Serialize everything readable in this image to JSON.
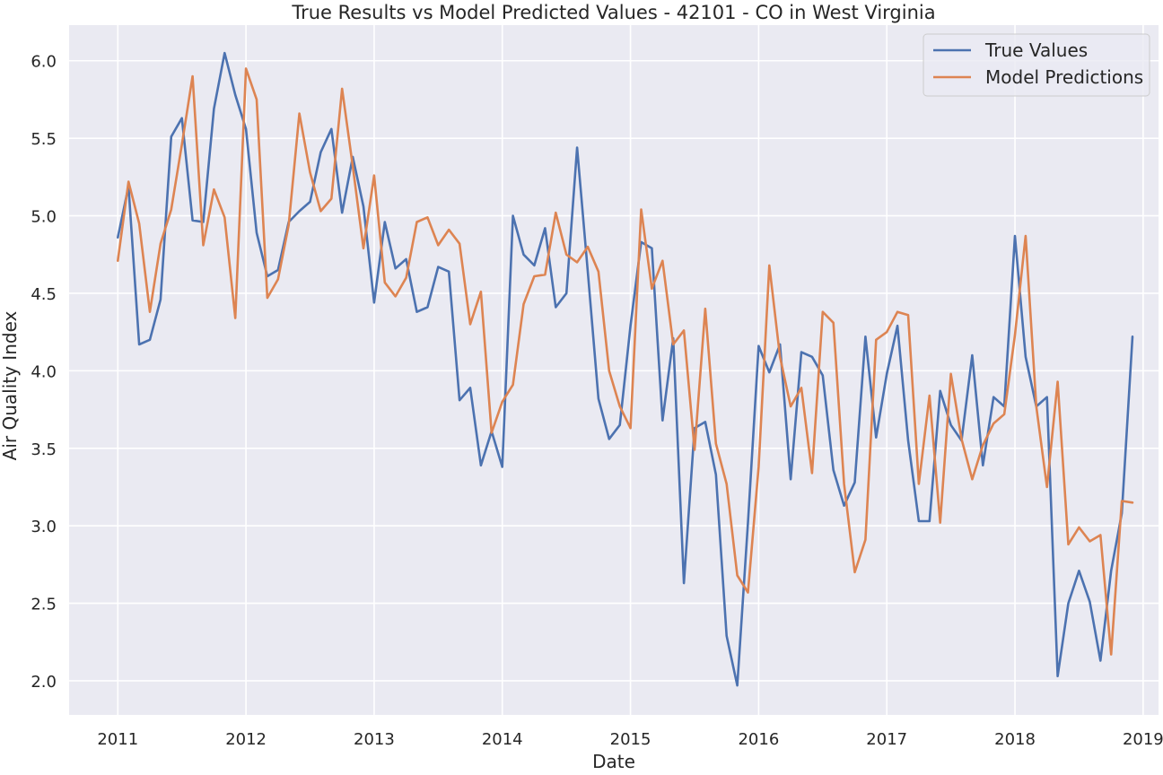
{
  "chart_data": {
    "type": "line",
    "title": "True Results vs Model Predicted Values - 42101 - CO in West Virginia",
    "xlabel": "Date",
    "ylabel": "Air Quality Index",
    "xlim": [
      2010.62,
      2019.12
    ],
    "ylim": [
      1.78,
      6.23
    ],
    "x_ticks": [
      2011,
      2012,
      2013,
      2014,
      2015,
      2016,
      2017,
      2018,
      2019
    ],
    "x_tick_labels": [
      "2011",
      "2012",
      "2013",
      "2014",
      "2015",
      "2016",
      "2017",
      "2018",
      "2019"
    ],
    "y_ticks": [
      2.0,
      2.5,
      3.0,
      3.5,
      4.0,
      4.5,
      5.0,
      5.5,
      6.0
    ],
    "y_tick_labels": [
      "2.0",
      "2.5",
      "3.0",
      "3.5",
      "4.0",
      "4.5",
      "5.0",
      "5.5",
      "6.0"
    ],
    "grid": true,
    "legend_position": "top-right",
    "background_color": "#eaeaf2",
    "x_start": "2011-01",
    "x_step": "1 month",
    "series": [
      {
        "name": "True Values",
        "color": "#4c72b0",
        "values": [
          4.86,
          5.19,
          4.17,
          4.2,
          4.46,
          5.51,
          5.63,
          4.97,
          4.96,
          5.69,
          6.05,
          5.78,
          5.56,
          4.89,
          4.61,
          4.65,
          4.96,
          5.03,
          5.09,
          5.41,
          5.56,
          5.02,
          5.38,
          5.06,
          4.44,
          4.96,
          4.66,
          4.72,
          4.38,
          4.41,
          4.67,
          4.64,
          3.81,
          3.89,
          3.39,
          3.61,
          3.38,
          5.0,
          4.75,
          4.68,
          4.92,
          4.41,
          4.5,
          5.44,
          4.64,
          3.82,
          3.56,
          3.65,
          4.29,
          4.83,
          4.79,
          3.68,
          4.21,
          2.63,
          3.63,
          3.67,
          3.33,
          2.29,
          1.97,
          3.02,
          4.16,
          3.99,
          4.17,
          3.3,
          4.12,
          4.09,
          3.97,
          3.36,
          3.13,
          3.28,
          4.22,
          3.57,
          3.98,
          4.29,
          3.55,
          3.03,
          3.03,
          3.87,
          3.65,
          3.55,
          4.1,
          3.39,
          3.83,
          3.77,
          4.87,
          4.09,
          3.77,
          3.83,
          2.03,
          2.5,
          2.71,
          2.51,
          2.13,
          2.71,
          3.08,
          4.22
        ]
      },
      {
        "name": "Model Predictions",
        "color": "#dd8452",
        "values": [
          4.71,
          5.22,
          4.95,
          4.38,
          4.82,
          5.04,
          5.46,
          5.9,
          4.81,
          5.17,
          4.99,
          4.34,
          5.95,
          5.75,
          4.47,
          4.59,
          4.94,
          5.66,
          5.28,
          5.03,
          5.11,
          5.82,
          5.32,
          4.79,
          5.26,
          4.57,
          4.48,
          4.6,
          4.96,
          4.99,
          4.81,
          4.91,
          4.82,
          4.3,
          4.51,
          3.6,
          3.8,
          3.91,
          4.43,
          4.61,
          4.62,
          5.02,
          4.75,
          4.7,
          4.8,
          4.64,
          4.0,
          3.77,
          3.63,
          5.04,
          4.53,
          4.71,
          4.17,
          4.26,
          3.49,
          4.4,
          3.53,
          3.27,
          2.68,
          2.57,
          3.38,
          4.68,
          4.09,
          3.77,
          3.89,
          3.34,
          4.38,
          4.31,
          3.27,
          2.7,
          2.91,
          4.2,
          4.25,
          4.38,
          4.36,
          3.27,
          3.84,
          3.02,
          3.98,
          3.56,
          3.3,
          3.52,
          3.66,
          3.72,
          4.23,
          4.87,
          3.77,
          3.25,
          3.93,
          2.88,
          2.99,
          2.9,
          2.94,
          2.17,
          3.16,
          3.15
        ]
      }
    ]
  }
}
